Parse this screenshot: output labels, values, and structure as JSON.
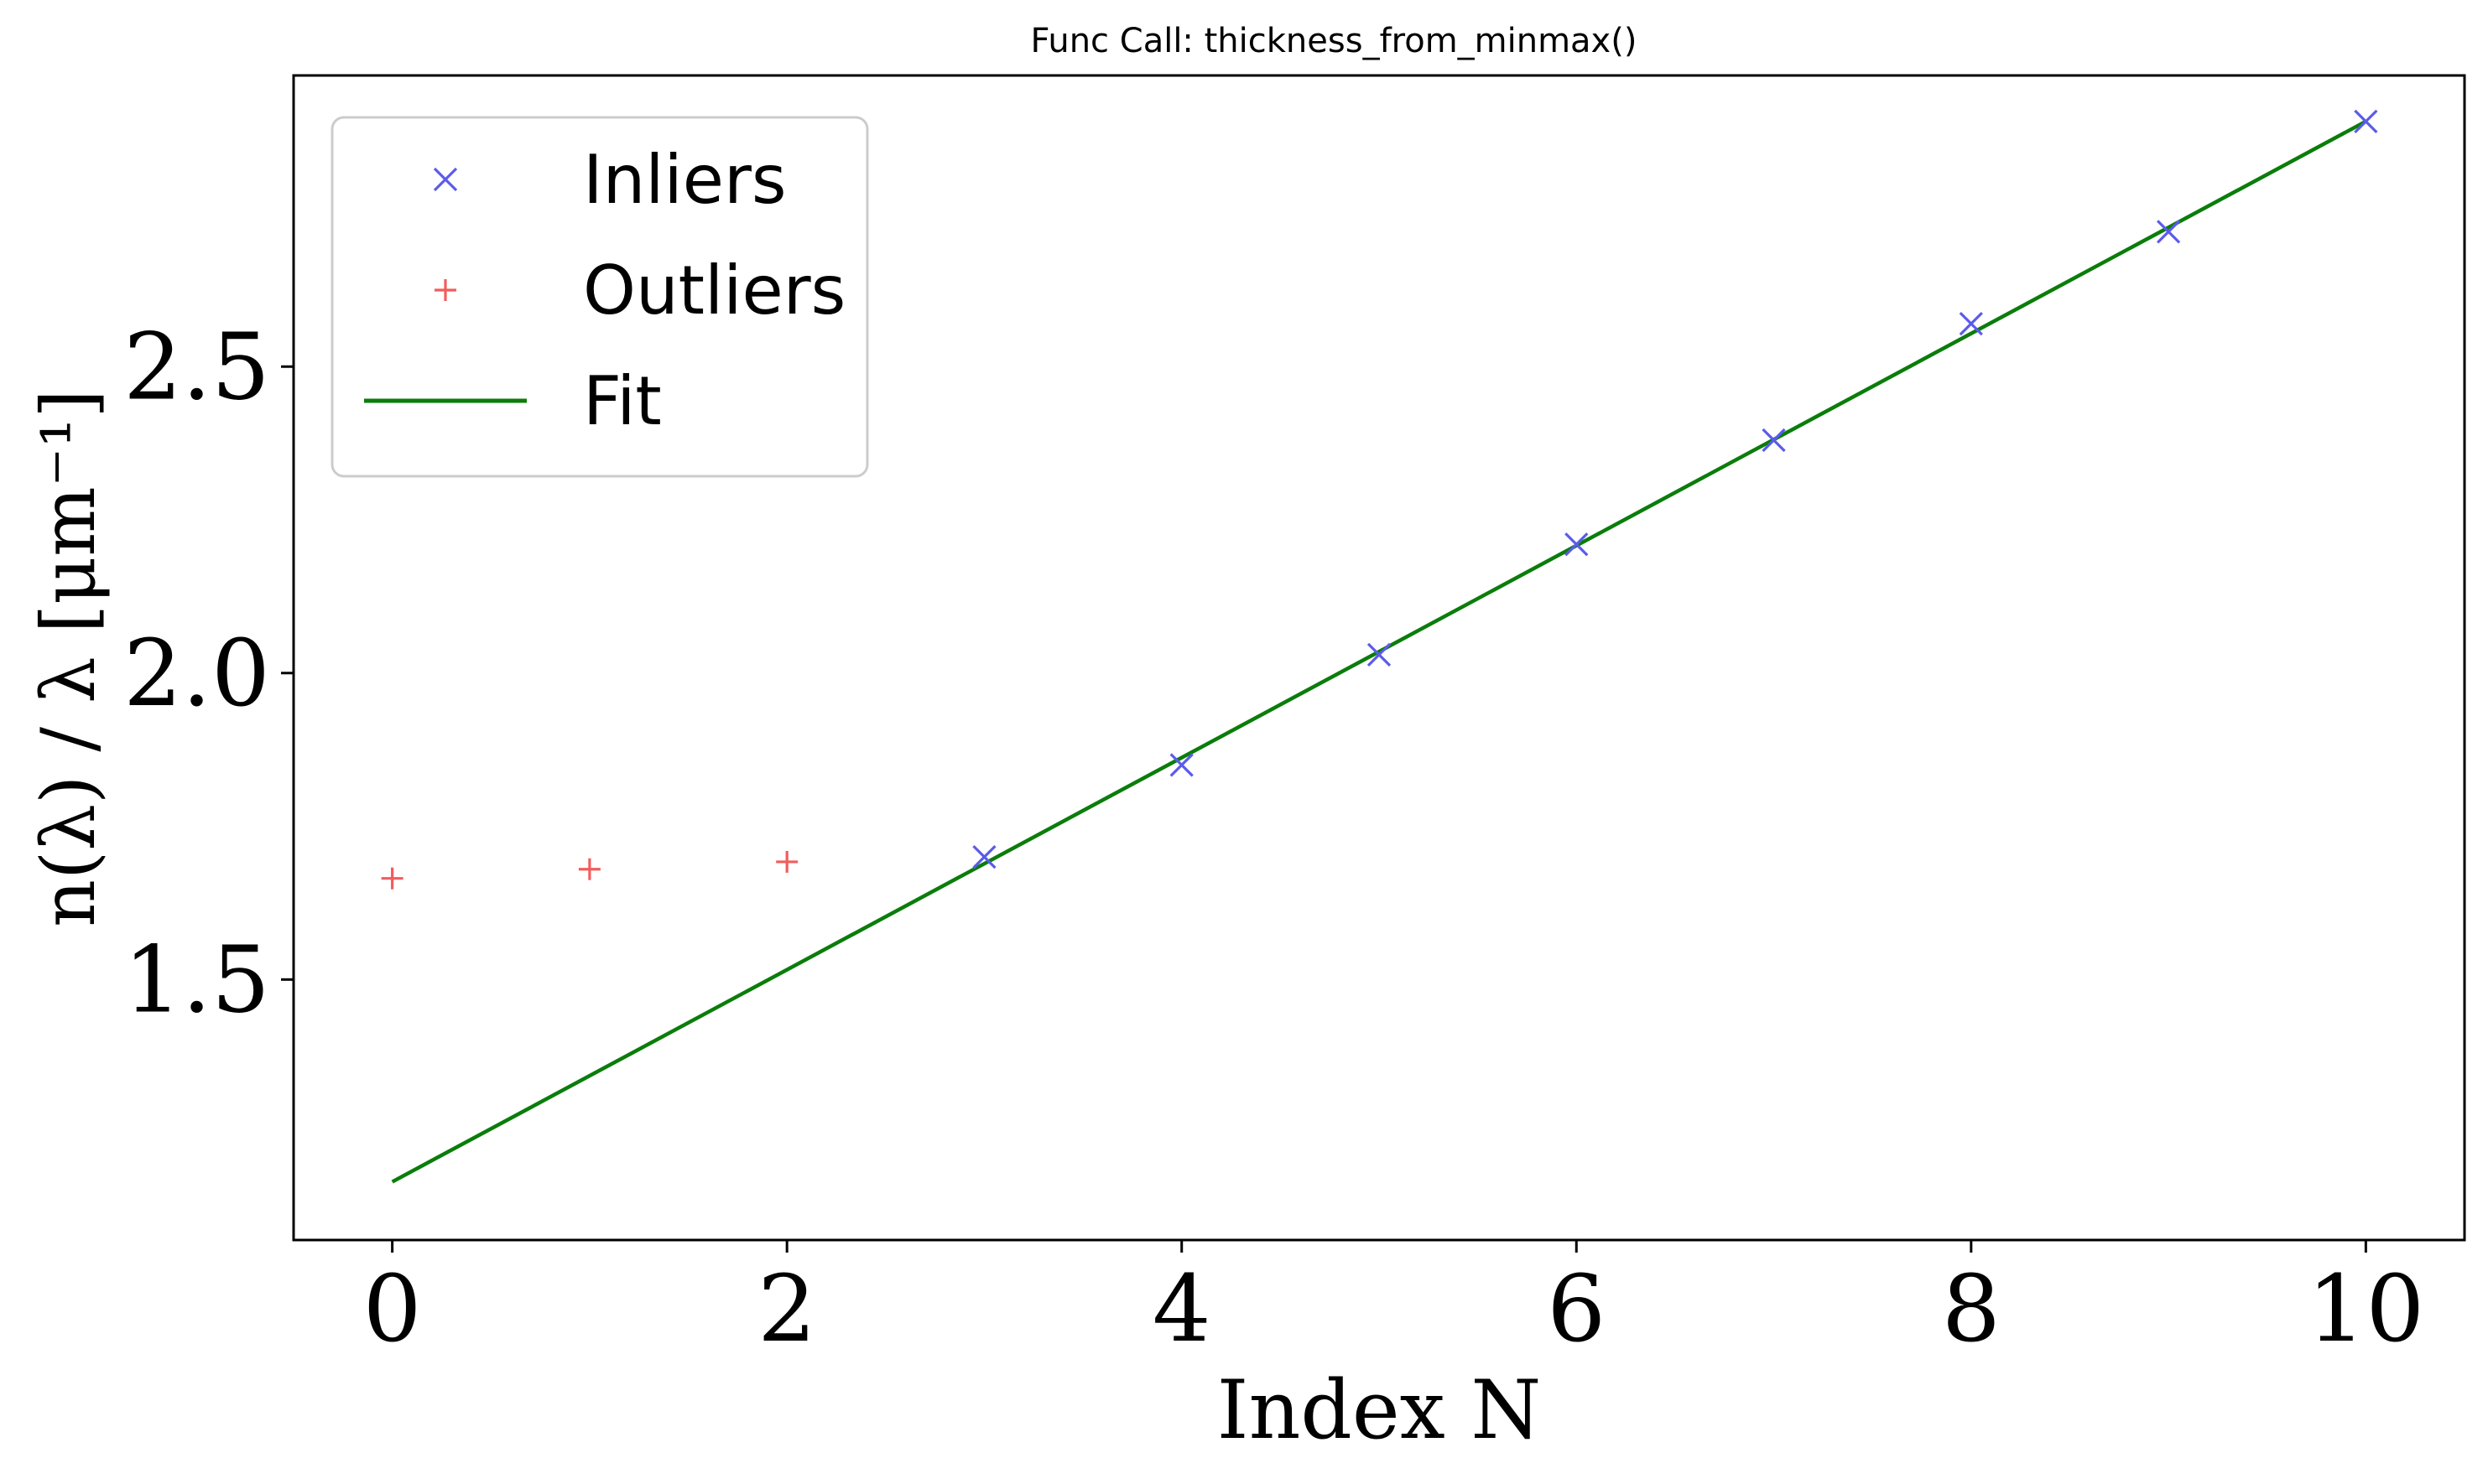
{
  "chart_data": {
    "type": "scatter",
    "title": "Func Call: thickness_from_minmax()",
    "xlabel": "Index N",
    "ylabel": "n(λ) / λ  [μm⁻¹]",
    "xlim": [
      -0.5,
      10.5
    ],
    "ylim": [
      1.075,
      2.975
    ],
    "xticks": [
      0,
      2,
      4,
      6,
      8,
      10
    ],
    "xtick_labels": [
      "0",
      "2",
      "4",
      "6",
      "8",
      "10"
    ],
    "yticks": [
      1.5,
      2.0,
      2.5
    ],
    "ytick_labels": [
      "1.5",
      "2.0",
      "2.5"
    ],
    "grid": false,
    "legend_position": "top-left",
    "series": [
      {
        "name": "Inliers",
        "kind": "markers",
        "marker": "x",
        "color": "#5b5bea",
        "x": [
          3,
          4,
          5,
          6,
          7,
          8,
          9,
          10
        ],
        "y": [
          1.7,
          1.85,
          2.03,
          2.21,
          2.38,
          2.57,
          2.72,
          2.9
        ]
      },
      {
        "name": "Outliers",
        "kind": "markers",
        "marker": "+",
        "color": "#f25c5c",
        "x": [
          0,
          1,
          2
        ],
        "y": [
          1.665,
          1.68,
          1.692
        ]
      },
      {
        "name": "Fit",
        "kind": "line",
        "color": "#0a7d0a",
        "x": [
          0,
          10
        ],
        "y": [
          1.17,
          2.9
        ]
      }
    ]
  }
}
